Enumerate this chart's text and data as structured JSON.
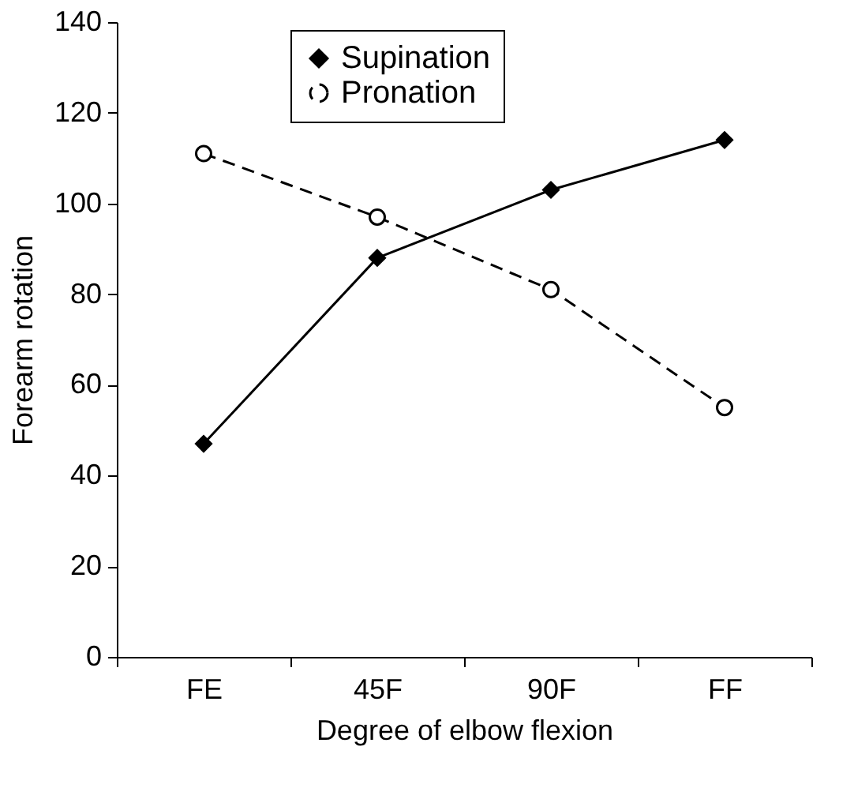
{
  "chart_data": {
    "type": "line",
    "xlabel": "Degree of elbow flexion",
    "ylabel": "Forearm rotation",
    "categories": [
      "FE",
      "45F",
      "90F",
      "FF"
    ],
    "series": [
      {
        "name": "Supination",
        "color": "#000000",
        "values": [
          47,
          88,
          103,
          114
        ],
        "marker": "diamond",
        "line_style": "solid"
      },
      {
        "name": "Pronation",
        "color": "#000000",
        "values": [
          111,
          97,
          81,
          55
        ],
        "marker": "circle",
        "line_style": "dashed"
      }
    ],
    "ylim": [
      0,
      140
    ],
    "yticks": [
      0,
      20,
      40,
      60,
      80,
      100,
      120,
      140
    ],
    "grid": false,
    "legend": "top"
  }
}
